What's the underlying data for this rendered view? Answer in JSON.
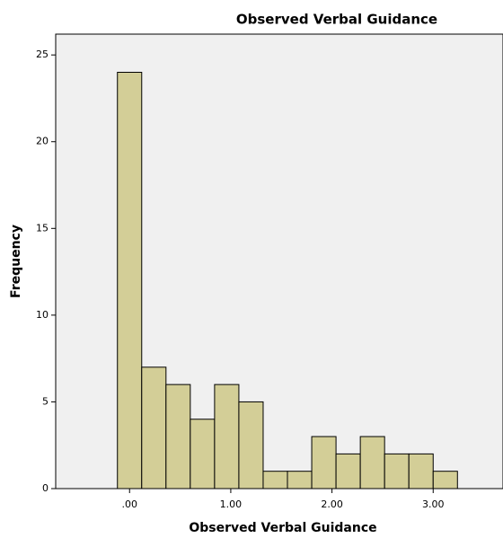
{
  "chart_data": {
    "type": "histogram",
    "title": "Observed Verbal Guidance",
    "x_label": "Observed Verbal Guidance",
    "y_label": "Frequency",
    "bins": [
      -0.12,
      0.12,
      0.36,
      0.6,
      0.84,
      1.08,
      1.32,
      1.56,
      1.8,
      2.04,
      2.28,
      2.52,
      2.76,
      3.0,
      3.24
    ],
    "counts": [
      24,
      7,
      6,
      4,
      6,
      5,
      1,
      1,
      3,
      2,
      3,
      2,
      2,
      1
    ],
    "color": "#d3ce97",
    "xlim": [
      -0.73,
      3.69
    ],
    "xticks": [
      {
        "value": 0,
        "label": ".00"
      },
      {
        "value": 1,
        "label": "1.00"
      },
      {
        "value": 2,
        "label": "2.00"
      },
      {
        "value": 3,
        "label": "3.00"
      }
    ],
    "ylim": [
      0,
      26.2
    ],
    "yticks": [
      0,
      5,
      10,
      15,
      20,
      25
    ]
  }
}
